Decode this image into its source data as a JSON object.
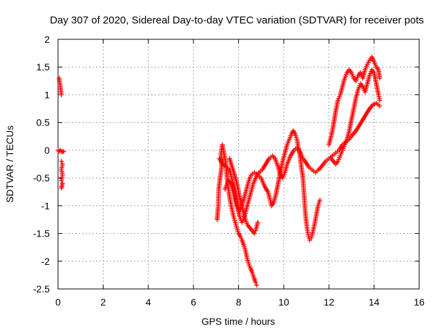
{
  "chart_data": {
    "type": "scatter",
    "title": "Day 307 of 2020, Sidereal Day-to-day VTEC variation (SDTVAR) for receiver pots",
    "xlabel": "GPS time / hours",
    "ylabel": "SDTVAR / TECUs",
    "xlim": [
      0,
      16
    ],
    "ylim": [
      -2.5,
      2
    ],
    "xticks": [
      "0",
      "2",
      "4",
      "6",
      "8",
      "10",
      "12",
      "14",
      "16"
    ],
    "yticks": [
      "2",
      "1.5",
      "1",
      "0.5",
      "0",
      "-0.5",
      "-1",
      "-1.5",
      "-2",
      "-2.5"
    ],
    "grid": true,
    "marker": "+",
    "color": "#ff0000",
    "series": [
      {
        "name": "SDTVAR",
        "segments": [
          [
            [
              0.05,
              1.3
            ],
            [
              0.1,
              1.15
            ],
            [
              0.15,
              1.0
            ]
          ],
          [
            [
              0.0,
              0.0
            ],
            [
              0.05,
              -0.02
            ],
            [
              0.1,
              0.0
            ],
            [
              0.15,
              -0.02
            ],
            [
              0.2,
              -0.03
            ],
            [
              0.25,
              -0.02
            ]
          ],
          [
            [
              0.15,
              -0.2
            ],
            [
              0.2,
              -0.25
            ],
            [
              0.15,
              -0.35
            ],
            [
              0.2,
              -0.45
            ],
            [
              0.15,
              -0.55
            ],
            [
              0.2,
              -0.6
            ],
            [
              0.15,
              -0.68
            ]
          ],
          [
            [
              7.05,
              -1.25
            ],
            [
              7.1,
              -1.0
            ],
            [
              7.12,
              -0.7
            ],
            [
              7.18,
              -0.5
            ],
            [
              7.25,
              -0.3
            ],
            [
              7.22,
              -0.05
            ],
            [
              7.28,
              0.1
            ],
            [
              7.35,
              -0.05
            ],
            [
              7.42,
              -0.2
            ],
            [
              7.48,
              -0.45
            ],
            [
              7.55,
              -0.7
            ],
            [
              7.62,
              -0.9
            ],
            [
              7.7,
              -1.05
            ],
            [
              7.78,
              -1.2
            ],
            [
              7.85,
              -1.3
            ],
            [
              7.92,
              -1.4
            ],
            [
              8.0,
              -1.5
            ],
            [
              8.08,
              -1.55
            ],
            [
              8.15,
              -1.62
            ],
            [
              8.22,
              -1.7
            ],
            [
              8.3,
              -1.8
            ],
            [
              8.38,
              -1.95
            ],
            [
              8.45,
              -2.05
            ],
            [
              8.52,
              -2.12
            ],
            [
              8.6,
              -2.2
            ],
            [
              8.68,
              -2.3
            ],
            [
              8.75,
              -2.38
            ],
            [
              8.8,
              -2.43
            ]
          ],
          [
            [
              7.15,
              -0.15
            ],
            [
              7.3,
              -0.25
            ],
            [
              7.45,
              -0.3
            ],
            [
              7.6,
              -0.35
            ],
            [
              7.7,
              -0.5
            ],
            [
              7.78,
              -0.7
            ],
            [
              7.85,
              -0.9
            ],
            [
              7.95,
              -1.05
            ],
            [
              8.05,
              -1.2
            ],
            [
              8.15,
              -1.3
            ],
            [
              8.25,
              -1.2
            ],
            [
              8.35,
              -1.05
            ],
            [
              8.45,
              -0.9
            ],
            [
              8.55,
              -0.75
            ],
            [
              8.65,
              -0.6
            ],
            [
              8.78,
              -0.48
            ],
            [
              8.9,
              -0.4
            ],
            [
              9.05,
              -0.35
            ],
            [
              9.2,
              -0.25
            ],
            [
              9.35,
              -0.15
            ],
            [
              9.5,
              -0.1
            ],
            [
              9.62,
              -0.15
            ],
            [
              9.75,
              -0.3
            ],
            [
              9.85,
              -0.45
            ],
            [
              9.95,
              -0.5
            ],
            [
              10.05,
              -0.4
            ],
            [
              10.15,
              -0.25
            ],
            [
              10.3,
              -0.1
            ],
            [
              10.45,
              0.0
            ],
            [
              10.6,
              0.05
            ],
            [
              10.75,
              -0.05
            ],
            [
              10.85,
              -0.15
            ],
            [
              10.95,
              -0.2
            ],
            [
              11.1,
              -0.3
            ],
            [
              11.25,
              -0.35
            ],
            [
              11.4,
              -0.4
            ],
            [
              11.55,
              -0.35
            ],
            [
              11.7,
              -0.28
            ],
            [
              11.85,
              -0.2
            ],
            [
              12.0,
              -0.15
            ],
            [
              12.15,
              -0.1
            ],
            [
              12.3,
              -0.05
            ],
            [
              12.45,
              0.0
            ],
            [
              12.6,
              0.1
            ],
            [
              12.75,
              0.15
            ],
            [
              12.9,
              0.2
            ],
            [
              13.05,
              0.28
            ],
            [
              13.2,
              0.35
            ],
            [
              13.35,
              0.45
            ],
            [
              13.5,
              0.55
            ],
            [
              13.65,
              0.65
            ],
            [
              13.8,
              0.75
            ],
            [
              13.95,
              0.82
            ],
            [
              14.1,
              0.85
            ],
            [
              14.25,
              0.8
            ]
          ],
          [
            [
              7.4,
              -0.7
            ],
            [
              7.55,
              -0.55
            ],
            [
              7.7,
              -0.6
            ],
            [
              7.85,
              -0.8
            ],
            [
              7.95,
              -1.0
            ],
            [
              8.05,
              -1.1
            ],
            [
              8.15,
              -1.0
            ],
            [
              8.25,
              -0.85
            ],
            [
              8.35,
              -0.7
            ],
            [
              8.45,
              -0.55
            ],
            [
              8.55,
              -0.45
            ],
            [
              8.7,
              -0.4
            ],
            [
              8.85,
              -0.45
            ],
            [
              9.0,
              -0.5
            ],
            [
              9.15,
              -0.65
            ],
            [
              9.3,
              -0.75
            ],
            [
              9.4,
              -0.9
            ],
            [
              9.45,
              -1.0
            ],
            [
              9.55,
              -0.95
            ],
            [
              9.65,
              -0.8
            ],
            [
              9.75,
              -0.6
            ],
            [
              9.85,
              -0.4
            ],
            [
              9.95,
              -0.2
            ],
            [
              10.05,
              -0.05
            ],
            [
              10.15,
              0.1
            ],
            [
              10.25,
              0.2
            ],
            [
              10.35,
              0.3
            ],
            [
              10.42,
              0.35
            ],
            [
              10.5,
              0.3
            ],
            [
              10.58,
              0.2
            ],
            [
              10.65,
              0.05
            ],
            [
              10.72,
              -0.1
            ],
            [
              10.78,
              -0.3
            ],
            [
              10.85,
              -0.5
            ],
            [
              10.9,
              -0.8
            ],
            [
              10.95,
              -1.1
            ],
            [
              11.0,
              -1.3
            ],
            [
              11.05,
              -1.45
            ],
            [
              11.1,
              -1.55
            ],
            [
              11.15,
              -1.62
            ],
            [
              11.22,
              -1.58
            ],
            [
              11.3,
              -1.45
            ],
            [
              11.38,
              -1.3
            ],
            [
              11.45,
              -1.15
            ],
            [
              11.52,
              -1.0
            ],
            [
              11.6,
              -0.9
            ]
          ],
          [
            [
              7.6,
              -0.15
            ],
            [
              7.75,
              -0.35
            ],
            [
              7.9,
              -0.55
            ],
            [
              8.0,
              -0.75
            ],
            [
              8.1,
              -0.95
            ],
            [
              8.2,
              -1.1
            ],
            [
              8.3,
              -1.25
            ],
            [
              8.4,
              -1.35
            ],
            [
              8.5,
              -1.4
            ],
            [
              8.6,
              -1.45
            ],
            [
              8.7,
              -1.5
            ],
            [
              8.75,
              -1.45
            ],
            [
              8.85,
              -1.3
            ]
          ],
          [
            [
              12.0,
              0.1
            ],
            [
              12.1,
              0.25
            ],
            [
              12.2,
              0.45
            ],
            [
              12.3,
              0.7
            ],
            [
              12.4,
              0.9
            ],
            [
              12.5,
              1.0
            ],
            [
              12.6,
              1.15
            ],
            [
              12.7,
              1.3
            ],
            [
              12.8,
              1.4
            ],
            [
              12.9,
              1.45
            ],
            [
              13.0,
              1.4
            ],
            [
              13.1,
              1.3
            ],
            [
              13.2,
              1.25
            ],
            [
              13.3,
              1.35
            ],
            [
              13.4,
              1.4
            ],
            [
              13.5,
              1.3
            ],
            [
              13.6,
              1.45
            ],
            [
              13.7,
              1.55
            ],
            [
              13.8,
              1.62
            ],
            [
              13.9,
              1.68
            ],
            [
              14.0,
              1.6
            ],
            [
              14.1,
              1.5
            ],
            [
              14.2,
              1.45
            ],
            [
              14.25,
              1.3
            ]
          ],
          [
            [
              12.1,
              -0.15
            ],
            [
              12.2,
              -0.2
            ],
            [
              12.3,
              -0.25
            ],
            [
              12.4,
              -0.2
            ],
            [
              12.5,
              -0.1
            ],
            [
              12.6,
              0.0
            ],
            [
              12.7,
              0.1
            ],
            [
              12.8,
              0.2
            ],
            [
              12.9,
              0.35
            ],
            [
              13.0,
              0.55
            ],
            [
              13.1,
              0.75
            ],
            [
              13.2,
              0.95
            ],
            [
              13.3,
              1.1
            ],
            [
              13.4,
              1.2
            ],
            [
              13.5,
              1.15
            ],
            [
              13.6,
              1.05
            ],
            [
              13.7,
              1.2
            ],
            [
              13.8,
              1.35
            ],
            [
              13.9,
              1.45
            ],
            [
              14.0,
              1.4
            ],
            [
              14.1,
              1.2
            ],
            [
              14.2,
              1.0
            ],
            [
              14.25,
              0.9
            ]
          ]
        ]
      }
    ]
  }
}
